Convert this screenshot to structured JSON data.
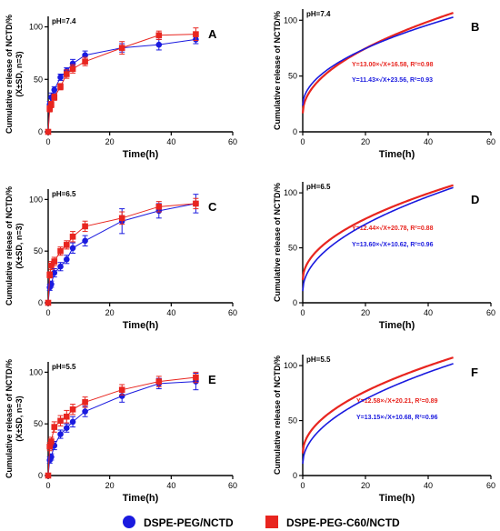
{
  "colors": {
    "blue": "#1a1adf",
    "red": "#e8251f",
    "axis": "#000000"
  },
  "legend": [
    {
      "name": "DSPE-PEG/NCTD",
      "color": "#1a1adf",
      "marker": "circle"
    },
    {
      "name": "DSPE-PEG-C60/NCTD",
      "color": "#e8251f",
      "marker": "square"
    }
  ],
  "chart_data": [
    {
      "type": "scatter",
      "panel": "A",
      "ph_label": "pH=7.4",
      "xlabel": "Time(h)",
      "ylabel": [
        "Cumulative release of NCTD/%",
        "(X±SD, n=3)"
      ],
      "xlim": [
        0,
        60
      ],
      "ylim": [
        0,
        110
      ],
      "xticks": [
        0,
        20,
        40,
        60
      ],
      "yticks": [
        0,
        50,
        100
      ],
      "series": [
        {
          "name": "DSPE-PEG/NCTD",
          "color": "#1a1adf",
          "marker": "circle",
          "x": [
            0,
            0.5,
            1,
            2,
            4,
            6,
            8,
            12,
            24,
            36,
            48
          ],
          "y": [
            0,
            26,
            33,
            40,
            52,
            58,
            65,
            73,
            80,
            83,
            88
          ],
          "err": [
            0,
            3,
            4,
            3,
            3,
            3,
            4,
            4,
            4,
            5,
            4
          ]
        },
        {
          "name": "DSPE-PEG-C60/NCTD",
          "color": "#e8251f",
          "marker": "square",
          "x": [
            0,
            0.5,
            1,
            2,
            4,
            6,
            8,
            12,
            24,
            36,
            48
          ],
          "y": [
            0,
            22,
            26,
            33,
            43,
            55,
            60,
            67,
            80,
            92,
            93
          ],
          "err": [
            0,
            3,
            3,
            3,
            3,
            4,
            4,
            4,
            6,
            4,
            6
          ]
        }
      ]
    },
    {
      "type": "line",
      "panel": "B",
      "ph_label": "pH=7.4",
      "xlabel": "Time(h)",
      "ylabel": [
        "Cumulative release of NCTD/%"
      ],
      "xlim": [
        0,
        60
      ],
      "ylim": [
        0,
        110
      ],
      "xticks": [
        0,
        20,
        40,
        60
      ],
      "yticks": [
        0,
        50,
        100
      ],
      "series": [
        {
          "equation": "Y=13.00×√X+16.58, R²=0.98",
          "color": "#e8251f",
          "a": 13.0,
          "b": 16.58,
          "xmax": 48
        },
        {
          "equation": "Y=11.43×√X+23.56, R²=0.93",
          "color": "#1a1adf",
          "a": 11.43,
          "b": 23.56,
          "xmax": 48
        }
      ]
    },
    {
      "type": "scatter",
      "panel": "C",
      "ph_label": "pH=6.5",
      "xlabel": "Time(h)",
      "ylabel": [
        "Cumulative release of NCTD/%",
        "(X±SD, n=3)"
      ],
      "xlim": [
        0,
        60
      ],
      "ylim": [
        0,
        110
      ],
      "xticks": [
        0,
        20,
        40,
        60
      ],
      "yticks": [
        0,
        50,
        100
      ],
      "series": [
        {
          "name": "DSPE-PEG/NCTD",
          "color": "#1a1adf",
          "marker": "circle",
          "x": [
            0,
            0.5,
            1,
            2,
            4,
            6,
            8,
            12,
            24,
            36,
            48
          ],
          "y": [
            0,
            15,
            18,
            29,
            35,
            42,
            53,
            60,
            79,
            89,
            96
          ],
          "err": [
            0,
            3,
            3,
            4,
            4,
            4,
            5,
            5,
            12,
            7,
            9
          ]
        },
        {
          "name": "DSPE-PEG-C60/NCTD",
          "color": "#e8251f",
          "marker": "square",
          "x": [
            0,
            0.5,
            1,
            2,
            4,
            6,
            8,
            12,
            24,
            36,
            48
          ],
          "y": [
            0,
            27,
            36,
            40,
            50,
            56,
            64,
            74,
            82,
            93,
            96
          ],
          "err": [
            0,
            3,
            4,
            4,
            4,
            4,
            5,
            5,
            6,
            5,
            5
          ]
        }
      ]
    },
    {
      "type": "line",
      "panel": "D",
      "ph_label": "pH=6.5",
      "xlabel": "Time(h)",
      "ylabel": [
        "Cumulative release of NCTD/%"
      ],
      "xlim": [
        0,
        60
      ],
      "ylim": [
        0,
        110
      ],
      "xticks": [
        0,
        20,
        40,
        60
      ],
      "yticks": [
        0,
        50,
        100
      ],
      "series": [
        {
          "equation": "Y=12.44×√X+20.78, R²=0.88",
          "color": "#e8251f",
          "a": 12.44,
          "b": 20.78,
          "xmax": 48
        },
        {
          "equation": "Y=13.60×√X+10.62, R²=0.96",
          "color": "#1a1adf",
          "a": 13.6,
          "b": 10.62,
          "xmax": 48
        }
      ]
    },
    {
      "type": "scatter",
      "panel": "E",
      "ph_label": "pH=5.5",
      "xlabel": "Time(h)",
      "ylabel": [
        "Cumulative release of NCTD/%",
        "(X±SD, n=3)"
      ],
      "xlim": [
        0,
        60
      ],
      "ylim": [
        0,
        110
      ],
      "xticks": [
        0,
        20,
        40,
        60
      ],
      "yticks": [
        0,
        50,
        100
      ],
      "series": [
        {
          "name": "DSPE-PEG/NCTD",
          "color": "#1a1adf",
          "marker": "circle",
          "x": [
            0,
            0.5,
            1,
            2,
            4,
            6,
            8,
            12,
            24,
            36,
            48
          ],
          "y": [
            0,
            15,
            18,
            29,
            40,
            46,
            52,
            62,
            77,
            89,
            91
          ],
          "err": [
            0,
            3,
            3,
            4,
            4,
            4,
            5,
            5,
            6,
            5,
            8
          ]
        },
        {
          "name": "DSPE-PEG-C60/NCTD",
          "color": "#e8251f",
          "marker": "square",
          "x": [
            0,
            0.5,
            1,
            2,
            4,
            6,
            8,
            12,
            24,
            36,
            48
          ],
          "y": [
            0,
            28,
            33,
            47,
            53,
            57,
            64,
            71,
            83,
            91,
            95
          ],
          "err": [
            0,
            4,
            4,
            5,
            5,
            6,
            5,
            5,
            5,
            5,
            5
          ]
        }
      ]
    },
    {
      "type": "line",
      "panel": "F",
      "ph_label": "pH=5.5",
      "xlabel": "Time(h)",
      "ylabel": [
        "Cumulative release of NCTD/%"
      ],
      "xlim": [
        0,
        60
      ],
      "ylim": [
        0,
        110
      ],
      "xticks": [
        0,
        20,
        40,
        60
      ],
      "yticks": [
        0,
        50,
        100
      ],
      "series": [
        {
          "equation": "Y=12.58×√X+20.21, R²=0.89",
          "color": "#e8251f",
          "a": 12.58,
          "b": 20.21,
          "xmax": 48
        },
        {
          "equation": "Y=13.15×√X+10.68, R²=0.96",
          "color": "#1a1adf",
          "a": 13.15,
          "b": 10.68,
          "xmax": 48
        }
      ]
    }
  ]
}
